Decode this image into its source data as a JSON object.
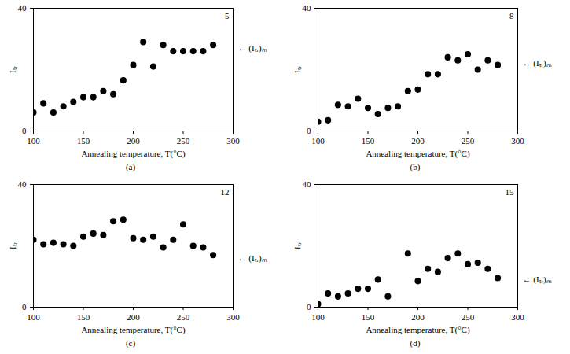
{
  "chart_data": [
    {
      "type": "scatter",
      "panel_label": "5",
      "caption": "(a)",
      "xlabel": "Annealing temperature, T(°C)",
      "ylabel": "Iₜᵣ",
      "x": [
        100,
        110,
        120,
        130,
        140,
        150,
        160,
        170,
        180,
        190,
        200,
        210,
        220,
        230,
        240,
        250,
        260,
        270,
        280
      ],
      "values": [
        6,
        9,
        6,
        8,
        9.5,
        11,
        11,
        13,
        12,
        16.5,
        21.5,
        29,
        21,
        28,
        26,
        26,
        26,
        26,
        28
      ],
      "color": "#000000",
      "marker": "circle",
      "xlim": [
        100,
        300
      ],
      "xticks": [
        100,
        150,
        200,
        250,
        300
      ],
      "ylim": [
        0,
        40
      ],
      "yticks": [
        0,
        40
      ],
      "annotation": {
        "text": "← (Iₜᵣ)ₘ",
        "y": 27
      }
    },
    {
      "type": "scatter",
      "panel_label": "8",
      "caption": "(b)",
      "xlabel": "Annealing temperature, T(°C)",
      "ylabel": "Iₜᵣ",
      "x": [
        100,
        110,
        120,
        130,
        140,
        150,
        160,
        170,
        180,
        190,
        200,
        210,
        220,
        230,
        240,
        250,
        260,
        270,
        280
      ],
      "values": [
        3,
        3.5,
        8.5,
        8,
        10.5,
        7.5,
        5.5,
        7.5,
        8,
        13,
        13.5,
        18.5,
        18.5,
        24,
        23,
        25,
        20,
        23,
        21.5
      ],
      "color": "#000000",
      "marker": "circle",
      "xlim": [
        100,
        300
      ],
      "xticks": [
        100,
        150,
        200,
        250,
        300
      ],
      "ylim": [
        0,
        40
      ],
      "yticks": [
        0,
        40
      ],
      "annotation": {
        "text": "← (Iₜᵣ)ₘ",
        "y": 22
      }
    },
    {
      "type": "scatter",
      "panel_label": "12",
      "caption": "(c)",
      "xlabel": "Annealing temperature, T(°C)",
      "ylabel": "Iₜᵣ",
      "x": [
        100,
        110,
        120,
        130,
        140,
        150,
        160,
        170,
        180,
        190,
        200,
        210,
        220,
        230,
        240,
        250,
        260,
        270,
        280
      ],
      "values": [
        22,
        20.5,
        21,
        20.5,
        20,
        23,
        24,
        23.5,
        28,
        28.5,
        22.5,
        22,
        23,
        19.5,
        22,
        27,
        20,
        19.5,
        17
      ],
      "color": "#000000",
      "marker": "circle",
      "xlim": [
        100,
        300
      ],
      "xticks": [
        100,
        150,
        200,
        250,
        300
      ],
      "ylim": [
        0,
        40
      ],
      "yticks": [
        0,
        40
      ],
      "annotation": {
        "text": "← (Iₜᵣ)ₘ",
        "y": 16
      }
    },
    {
      "type": "scatter",
      "panel_label": "15",
      "caption": "(d)",
      "xlabel": "Annealing temperature, T(°C)",
      "ylabel": "Iₜᵣ",
      "x": [
        100,
        110,
        120,
        130,
        140,
        150,
        160,
        170,
        190,
        200,
        210,
        220,
        230,
        240,
        250,
        260,
        270,
        280
      ],
      "values": [
        1,
        4.5,
        3.5,
        4.5,
        6,
        6,
        9,
        3.5,
        17.5,
        8.5,
        12.5,
        11.5,
        16,
        17.5,
        14,
        14.5,
        12.5,
        9.5
      ],
      "color": "#000000",
      "marker": "circle",
      "xlim": [
        100,
        300
      ],
      "xticks": [
        100,
        150,
        200,
        250,
        300
      ],
      "ylim": [
        0,
        40
      ],
      "yticks": [
        0,
        40
      ],
      "annotation": {
        "text": "← (Iₜᵣ)ₘ",
        "y": 9
      }
    }
  ]
}
